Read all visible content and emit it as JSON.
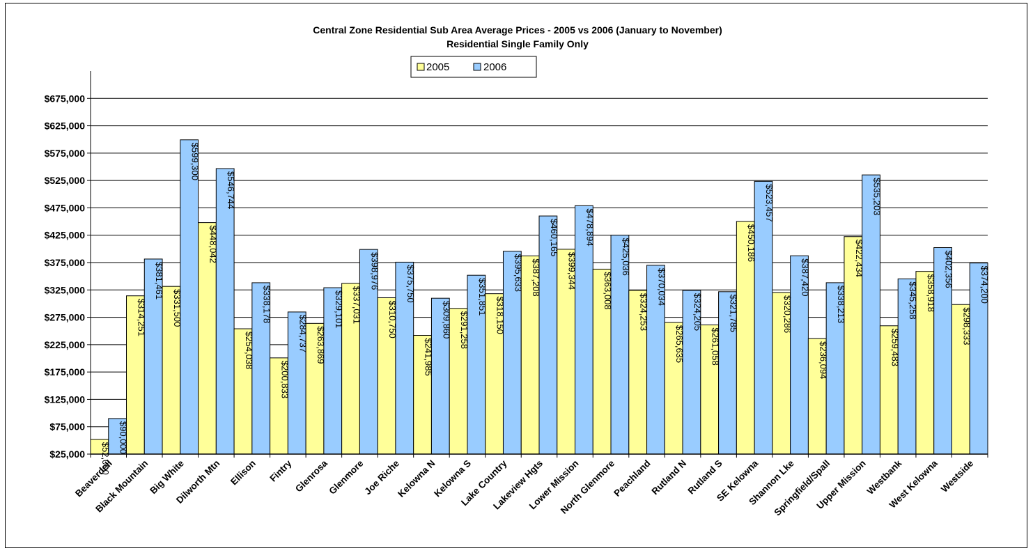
{
  "chart_data": {
    "type": "bar",
    "title": "Central Zone Residential Sub Area Average Prices - 2005 vs 2006 (January to November)",
    "subtitle": "Residential Single Family Only",
    "legend_position": "top-center",
    "grid": true,
    "ylim": [
      25000,
      725000
    ],
    "yticks": [
      "$25,000",
      "$75,000",
      "$125,000",
      "$175,000",
      "$225,000",
      "$275,000",
      "$325,000",
      "$375,000",
      "$425,000",
      "$475,000",
      "$525,000",
      "$575,000",
      "$625,000",
      "$675,000"
    ],
    "ytick_values": [
      25000,
      75000,
      125000,
      175000,
      225000,
      275000,
      325000,
      375000,
      425000,
      475000,
      525000,
      575000,
      625000,
      675000
    ],
    "categories": [
      "Beaverdell",
      "Black Mountain",
      "Big White",
      "Dilworth Mtn",
      "Ellison",
      "Fintry",
      "Glenrosa",
      "Glenmore",
      "Joe Riche",
      "Kelowna N",
      "Kelowna S",
      "Lake Country",
      "Lakeview Hgts",
      "Lower Mission",
      "North Glenmore",
      "Peachland",
      "Rutland N",
      "Rutland S",
      "SE Kelowna",
      "Shannon Lke",
      "Springfield/Spall",
      "Upper Mission",
      "Westbank",
      "West Kelowna",
      "Westside"
    ],
    "series": [
      {
        "name": "2005",
        "color": "#ffff99",
        "values": [
          52000,
          314251,
          331500,
          448042,
          254038,
          200833,
          263869,
          337031,
          310750,
          241985,
          291258,
          318150,
          387208,
          399344,
          363008,
          324253,
          265635,
          261058,
          450186,
          320286,
          236094,
          422434,
          259483,
          358918,
          298333
        ],
        "labels": [
          "$52,000",
          "$314,251",
          "$331,500",
          "$448,042",
          "$254,038",
          "$200,833",
          "$263,869",
          "$337,031",
          "$310,750",
          "$241,985",
          "$291,258",
          "$318,150",
          "$387,208",
          "$399,344",
          "$363,008",
          "$324,253",
          "$265,635",
          "$261,058",
          "$450,186",
          "$320,286",
          "$236,094",
          "$422,434",
          "$259,483",
          "$358,918",
          "$298,333"
        ]
      },
      {
        "name": "2006",
        "color": "#99ccff",
        "values": [
          90000,
          381461,
          599300,
          546744,
          338178,
          284737,
          329101,
          398976,
          375750,
          309860,
          351851,
          395633,
          460165,
          478894,
          425036,
          370034,
          324205,
          321785,
          523457,
          387420,
          338213,
          535203,
          345258,
          402356,
          374200
        ],
        "labels": [
          "$90,000",
          "$381,461",
          "$599,300",
          "$546,744",
          "$338,178",
          "$284,737",
          "$329,101",
          "$398,976",
          "$375,750",
          "$309,860",
          "$351,851",
          "$395,633",
          "$460,165",
          "$478,894",
          "$425,036",
          "$370,034",
          "$324,205",
          "$321,785",
          "$523,457",
          "$387,420",
          "$338,213",
          "$535,203",
          "$345,258",
          "$402,356",
          "$374,200"
        ]
      }
    ]
  }
}
